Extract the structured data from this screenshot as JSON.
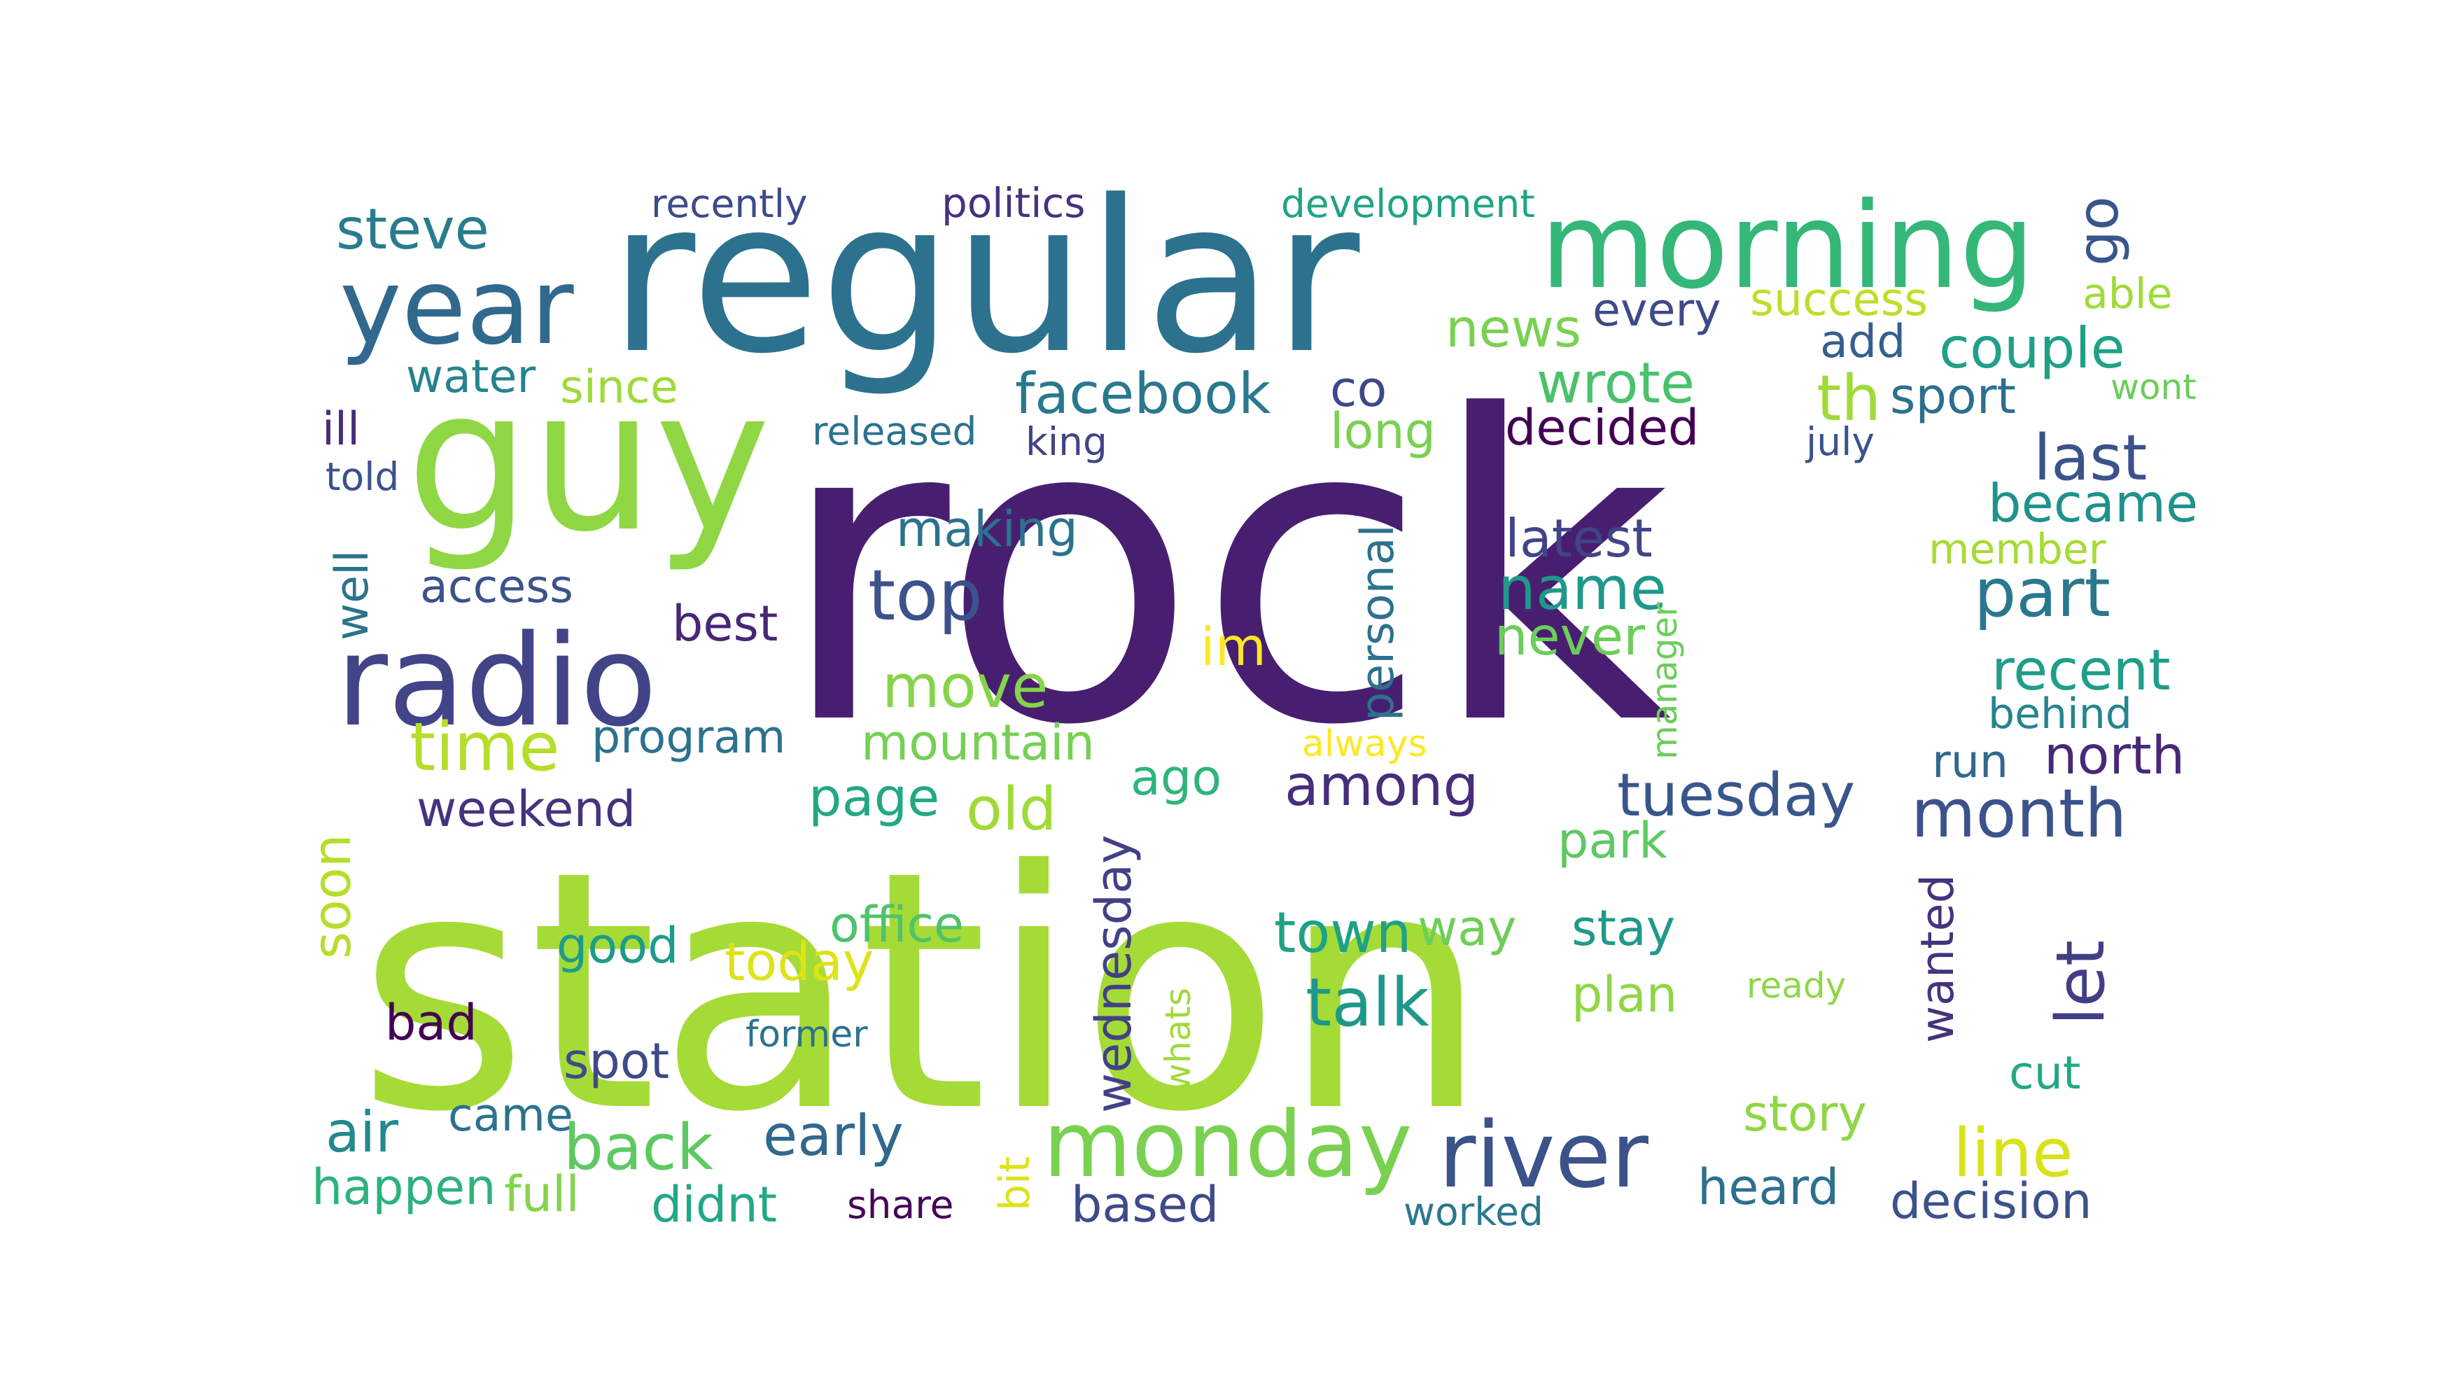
{
  "palette": {
    "dark_purple": "#481f70",
    "indigo": "#443983",
    "slate_blue": "#3b528b",
    "steel_blue": "#31688e",
    "teal_blue": "#287c8e",
    "teal": "#21918c",
    "green_teal": "#20a386",
    "green": "#35b779",
    "light_green": "#5ec962",
    "lime": "#90d743",
    "yellow_green": "#addc30",
    "yellow": "#fde725"
  },
  "words": [
    {
      "text": "rock",
      "color": "#481f70"
    },
    {
      "text": "station",
      "color": "#a5db36"
    },
    {
      "text": "regular",
      "color": "#2c728e"
    },
    {
      "text": "guy",
      "color": "#8fd744"
    },
    {
      "text": "morning",
      "color": "#35b779"
    },
    {
      "text": "radio",
      "color": "#414487"
    },
    {
      "text": "year",
      "color": "#31688e"
    },
    {
      "text": "monday",
      "color": "#7ad151"
    },
    {
      "text": "river",
      "color": "#3b528b"
    },
    {
      "text": "facebook",
      "color": "#2a788e"
    },
    {
      "text": "steve",
      "color": "#287c8e"
    },
    {
      "text": "recently",
      "color": "#3e4a89"
    },
    {
      "text": "politics",
      "color": "#46327e"
    },
    {
      "text": "development",
      "color": "#20a386"
    },
    {
      "text": "go",
      "color": "#39568c"
    },
    {
      "text": "success",
      "color": "#bddf26"
    },
    {
      "text": "able",
      "color": "#a0da39"
    },
    {
      "text": "every",
      "color": "#3e4a89"
    },
    {
      "text": "news",
      "color": "#7ad151"
    },
    {
      "text": "wrote",
      "color": "#4ac16d"
    },
    {
      "text": "add",
      "color": "#355f8d"
    },
    {
      "text": "couple",
      "color": "#1fa188"
    },
    {
      "text": "th",
      "color": "#a0da39"
    },
    {
      "text": "sport",
      "color": "#2d708e"
    },
    {
      "text": "wont",
      "color": "#6ccd5a"
    },
    {
      "text": "water",
      "color": "#25838e"
    },
    {
      "text": "since",
      "color": "#9fda3a"
    },
    {
      "text": "co",
      "color": "#3e4989"
    },
    {
      "text": "long",
      "color": "#7ad151"
    },
    {
      "text": "decided",
      "color": "#440154"
    },
    {
      "text": "july",
      "color": "#3b528b"
    },
    {
      "text": "last",
      "color": "#3b528b"
    },
    {
      "text": "ill",
      "color": "#472c7a"
    },
    {
      "text": "released",
      "color": "#2c728e"
    },
    {
      "text": "king",
      "color": "#414487"
    },
    {
      "text": "told",
      "color": "#3b528b"
    },
    {
      "text": "became",
      "color": "#20928c"
    },
    {
      "text": "making",
      "color": "#2c728e"
    },
    {
      "text": "latest",
      "color": "#414487"
    },
    {
      "text": "member",
      "color": "#a8db34"
    },
    {
      "text": "personal",
      "color": "#2c728e"
    },
    {
      "text": "well",
      "color": "#2c728e"
    },
    {
      "text": "access",
      "color": "#3b528b"
    },
    {
      "text": "top",
      "color": "#3b528b"
    },
    {
      "text": "name",
      "color": "#1f988b"
    },
    {
      "text": "part",
      "color": "#2a788e"
    },
    {
      "text": "best",
      "color": "#482677"
    },
    {
      "text": "never",
      "color": "#6ccd5a"
    },
    {
      "text": "manager",
      "color": "#6ccd5a"
    },
    {
      "text": "im",
      "color": "#fde725"
    },
    {
      "text": "move",
      "color": "#86d549"
    },
    {
      "text": "recent",
      "color": "#1f9e89"
    },
    {
      "text": "behind",
      "color": "#25848e"
    },
    {
      "text": "time",
      "color": "#b5de2b"
    },
    {
      "text": "program",
      "color": "#2c728e"
    },
    {
      "text": "mountain",
      "color": "#75d054"
    },
    {
      "text": "always",
      "color": "#fde725"
    },
    {
      "text": "run",
      "color": "#31688e"
    },
    {
      "text": "north",
      "color": "#482878"
    },
    {
      "text": "among",
      "color": "#472d7b"
    },
    {
      "text": "tuesday",
      "color": "#39568c"
    },
    {
      "text": "weekend",
      "color": "#46337e"
    },
    {
      "text": "page",
      "color": "#22a884"
    },
    {
      "text": "old",
      "color": "#a0da39"
    },
    {
      "text": "ago",
      "color": "#2fb47c"
    },
    {
      "text": "month",
      "color": "#3b528b"
    },
    {
      "text": "soon",
      "color": "#b5de2b"
    },
    {
      "text": "park",
      "color": "#5ec962"
    },
    {
      "text": "office",
      "color": "#4ec36b"
    },
    {
      "text": "wednesday",
      "color": "#424086"
    },
    {
      "text": "town",
      "color": "#1fa188"
    },
    {
      "text": "way",
      "color": "#6ece58"
    },
    {
      "text": "stay",
      "color": "#1f9a8a"
    },
    {
      "text": "wanted",
      "color": "#46337e"
    },
    {
      "text": "let",
      "color": "#433e85"
    },
    {
      "text": "good",
      "color": "#1e9b8a"
    },
    {
      "text": "today",
      "color": "#dde318"
    },
    {
      "text": "talk",
      "color": "#1f988b"
    },
    {
      "text": "plan",
      "color": "#8fd744"
    },
    {
      "text": "ready",
      "color": "#8fd744"
    },
    {
      "text": "bad",
      "color": "#440154"
    },
    {
      "text": "former",
      "color": "#2c728e"
    },
    {
      "text": "whats",
      "color": "#9fda3a"
    },
    {
      "text": "spot",
      "color": "#3e4a89"
    },
    {
      "text": "cut",
      "color": "#22a884"
    },
    {
      "text": "air",
      "color": "#23898e"
    },
    {
      "text": "came",
      "color": "#2c728e"
    },
    {
      "text": "back",
      "color": "#5ec962"
    },
    {
      "text": "early",
      "color": "#31688e"
    },
    {
      "text": "story",
      "color": "#8fd744"
    },
    {
      "text": "line",
      "color": "#d8e219"
    },
    {
      "text": "happen",
      "color": "#2db27d"
    },
    {
      "text": "full",
      "color": "#84d44b"
    },
    {
      "text": "didnt",
      "color": "#22a884"
    },
    {
      "text": "bit",
      "color": "#dde318"
    },
    {
      "text": "share",
      "color": "#46075a"
    },
    {
      "text": "based",
      "color": "#3e4a89"
    },
    {
      "text": "worked",
      "color": "#2a788e"
    },
    {
      "text": "heard",
      "color": "#2d708e"
    },
    {
      "text": "decision",
      "color": "#3b528b"
    }
  ]
}
